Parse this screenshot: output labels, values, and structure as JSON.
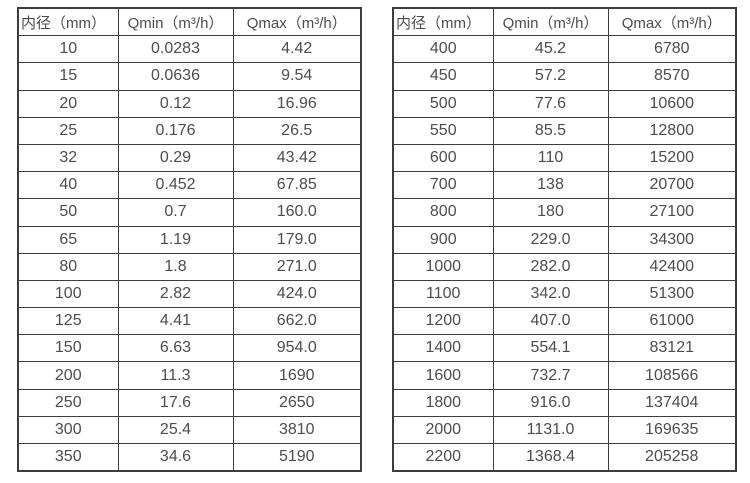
{
  "page": {
    "background": "#ffffff",
    "border_color": "#3d3d3d",
    "text_color": "#4d4d4d"
  },
  "tables": [
    {
      "name": "flow-spec-small-diameters",
      "headers": [
        "内径（mm）",
        "Qmin（m³/h）",
        "Qmax（m³/h）"
      ],
      "rows": [
        [
          "10",
          "0.0283",
          "4.42"
        ],
        [
          "15",
          "0.0636",
          "9.54"
        ],
        [
          "20",
          "0.12",
          "16.96"
        ],
        [
          "25",
          "0.176",
          "26.5"
        ],
        [
          "32",
          "0.29",
          "43.42"
        ],
        [
          "40",
          "0.452",
          "67.85"
        ],
        [
          "50",
          "0.7",
          "160.0"
        ],
        [
          "65",
          "1.19",
          "179.0"
        ],
        [
          "80",
          "1.8",
          "271.0"
        ],
        [
          "100",
          "2.82",
          "424.0"
        ],
        [
          "125",
          "4.41",
          "662.0"
        ],
        [
          "150",
          "6.63",
          "954.0"
        ],
        [
          "200",
          "11.3",
          "1690"
        ],
        [
          "250",
          "17.6",
          "2650"
        ],
        [
          "300",
          "25.4",
          "3810"
        ],
        [
          "350",
          "34.6",
          "5190"
        ]
      ]
    },
    {
      "name": "flow-spec-large-diameters",
      "headers": [
        "内径（mm）",
        "Qmin（m³/h）",
        "Qmax（m³/h）"
      ],
      "rows": [
        [
          "400",
          "45.2",
          "6780"
        ],
        [
          "450",
          "57.2",
          "8570"
        ],
        [
          "500",
          "77.6",
          "10600"
        ],
        [
          "550",
          "85.5",
          "12800"
        ],
        [
          "600",
          "110",
          "15200"
        ],
        [
          "700",
          "138",
          "20700"
        ],
        [
          "800",
          "180",
          "27100"
        ],
        [
          "900",
          "229.0",
          "34300"
        ],
        [
          "1000",
          "282.0",
          "42400"
        ],
        [
          "1100",
          "342.0",
          "51300"
        ],
        [
          "1200",
          "407.0",
          "61000"
        ],
        [
          "1400",
          "554.1",
          "83121"
        ],
        [
          "1600",
          "732.7",
          "108566"
        ],
        [
          "1800",
          "916.0",
          "137404"
        ],
        [
          "2000",
          "1131.0",
          "169635"
        ],
        [
          "2200",
          "1368.4",
          "205258"
        ]
      ]
    }
  ]
}
